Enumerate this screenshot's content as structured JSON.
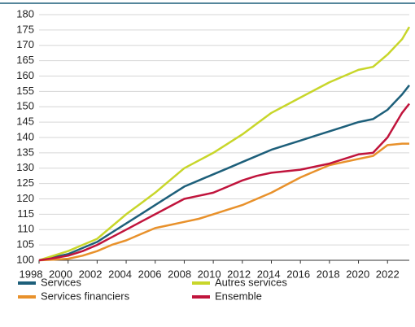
{
  "chart_data": {
    "type": "line",
    "x": [
      1998,
      1999,
      2000,
      2001,
      2002,
      2003,
      2004,
      2005,
      2006,
      2007,
      2008,
      2009,
      2010,
      2011,
      2012,
      2013,
      2014,
      2015,
      2016,
      2017,
      2018,
      2019,
      2020,
      2021,
      2022,
      2023,
      2023.5
    ],
    "series": [
      {
        "name": "Services",
        "color": "#1d5f7a",
        "values": [
          100,
          101,
          102,
          104,
          106,
          109,
          112,
          115,
          118,
          121,
          124,
          126,
          128,
          130,
          132,
          134,
          136,
          137.5,
          139,
          140.5,
          142,
          143.5,
          145,
          146,
          149,
          154,
          157
        ]
      },
      {
        "name": "Autres services",
        "color": "#c8d62a",
        "values": [
          100,
          101.5,
          103,
          105,
          107,
          111,
          115,
          118.5,
          122,
          126,
          130,
          132.5,
          135,
          138,
          141,
          144.5,
          148,
          150.5,
          153,
          155.5,
          158,
          160,
          162,
          163,
          167,
          172,
          176
        ]
      },
      {
        "name": "Services financiers",
        "color": "#e8912b",
        "values": [
          100,
          100.2,
          100.5,
          101.5,
          103,
          105,
          106.5,
          108.5,
          110.5,
          111.5,
          112.5,
          113.5,
          115,
          116.5,
          118,
          120,
          122,
          124.5,
          127,
          129,
          131,
          132,
          133,
          134,
          137.5,
          138,
          138
        ]
      },
      {
        "name": "Ensemble",
        "color": "#c0143c",
        "values": [
          100,
          100.7,
          101.5,
          103,
          105,
          107.5,
          110,
          112.5,
          115,
          117.5,
          120,
          121,
          122,
          124,
          126,
          127.5,
          128.5,
          129,
          129.5,
          130.5,
          131.5,
          133,
          134.5,
          135,
          140,
          148,
          151
        ]
      }
    ],
    "xlim": [
      1998,
      2023.5
    ],
    "xticks": [
      1998,
      2000,
      2002,
      2004,
      2006,
      2008,
      2010,
      2012,
      2014,
      2016,
      2018,
      2020,
      2022
    ],
    "ylim": [
      100,
      180
    ],
    "yticks": [
      100,
      105,
      110,
      115,
      120,
      125,
      130,
      135,
      140,
      145,
      150,
      155,
      160,
      165,
      170,
      175,
      180
    ],
    "grid": true
  }
}
